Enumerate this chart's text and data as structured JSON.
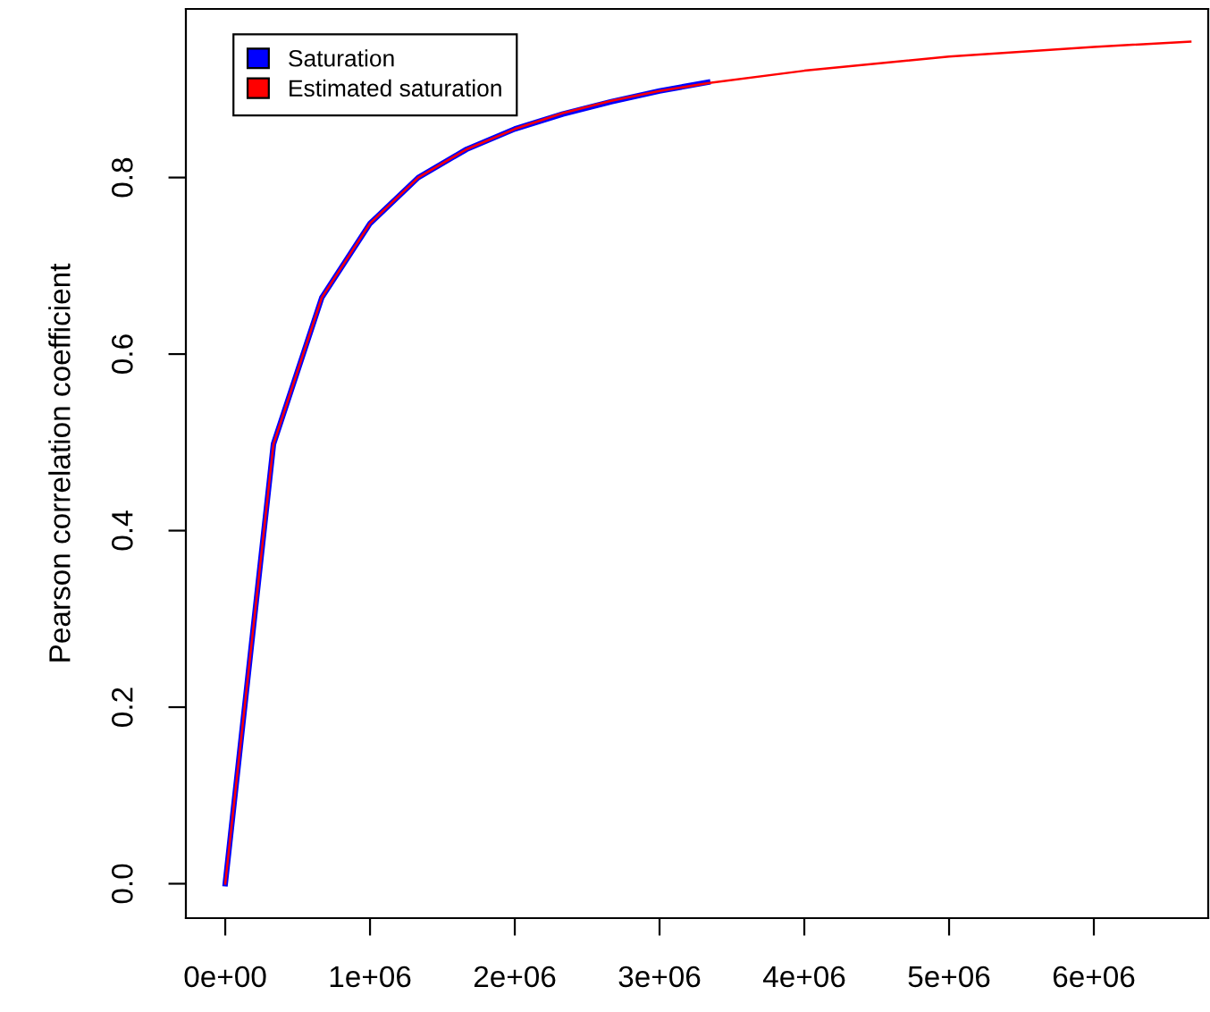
{
  "chart_data": {
    "type": "line",
    "ylabel": "Pearson correlation coefficient",
    "xlim": [
      -272000,
      6790000
    ],
    "ylim": [
      -0.039,
      0.991
    ],
    "xticks": [
      {
        "value": 0,
        "label": "0e+00"
      },
      {
        "value": 1000000,
        "label": "1e+06"
      },
      {
        "value": 2000000,
        "label": "2e+06"
      },
      {
        "value": 3000000,
        "label": "3e+06"
      },
      {
        "value": 4000000,
        "label": "4e+06"
      },
      {
        "value": 5000000,
        "label": "5e+06"
      },
      {
        "value": 6000000,
        "label": "6e+06"
      }
    ],
    "yticks": [
      {
        "value": 0,
        "label": "0.0"
      },
      {
        "value": 0.2,
        "label": "0.2"
      },
      {
        "value": 0.4,
        "label": "0.4"
      },
      {
        "value": 0.6,
        "label": "0.6"
      },
      {
        "value": 0.8,
        "label": "0.8"
      }
    ],
    "grid": false,
    "legend": "top left",
    "marker": "none",
    "line_style": "solid",
    "series": [
      {
        "name": "Saturation",
        "color": "#0000ff",
        "x": [
          0,
          333000,
          667000,
          1000000,
          1333000,
          1667000,
          2000000,
          2333000,
          2667000,
          3000000,
          3333000
        ],
        "values": [
          0,
          0.498,
          0.664,
          0.748,
          0.8,
          0.832,
          0.855,
          0.872,
          0.886,
          0.898,
          0.908
        ]
      },
      {
        "name": "Estimated saturation",
        "color": "#ff0000",
        "x": [
          0,
          333000,
          667000,
          1000000,
          1333000,
          1667000,
          2000000,
          2333000,
          2667000,
          3000000,
          3333000,
          4000000,
          5000000,
          6000000,
          6667000
        ],
        "values": [
          0,
          0.498,
          0.664,
          0.748,
          0.8,
          0.832,
          0.855,
          0.873,
          0.887,
          0.898,
          0.907,
          0.921,
          0.937,
          0.948,
          0.954
        ]
      }
    ]
  }
}
